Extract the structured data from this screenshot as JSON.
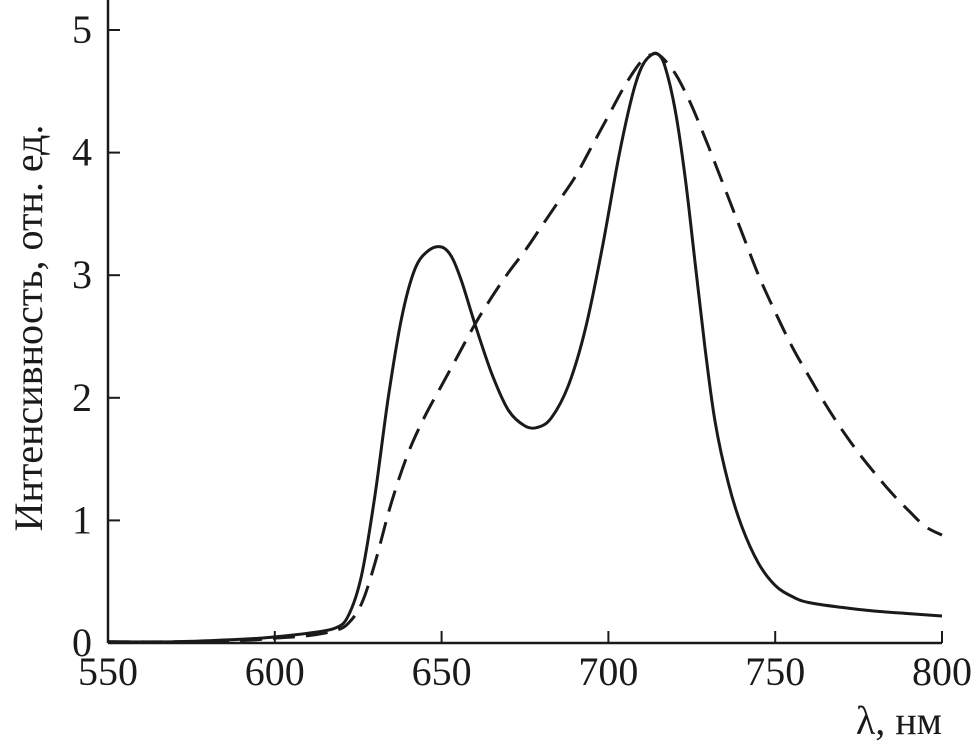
{
  "chart_data": {
    "type": "line",
    "title": "",
    "xlabel": "λ, нм",
    "ylabel": "Интенсивность, отн. ед.",
    "xlim": [
      550,
      800
    ],
    "ylim": [
      0,
      5
    ],
    "x_ticks": [
      550,
      600,
      650,
      700,
      750,
      800
    ],
    "y_ticks": [
      0,
      1,
      2,
      3,
      4,
      5
    ],
    "grid": false,
    "legend": "none",
    "series": [
      {
        "style": "solid",
        "color": "#1a1a1a",
        "x": [
          550,
          570,
          590,
          600,
          610,
          618,
          622,
          626,
          630,
          634,
          638,
          642,
          646,
          650,
          653,
          656,
          660,
          665,
          670,
          675,
          679,
          683,
          688,
          693,
          698,
          703,
          707,
          710,
          713,
          715,
          717,
          720,
          723,
          726,
          729,
          732,
          736,
          740,
          745,
          750,
          755,
          760,
          770,
          780,
          790,
          800
        ],
        "y": [
          0.01,
          0.01,
          0.03,
          0.05,
          0.08,
          0.12,
          0.22,
          0.55,
          1.2,
          2.0,
          2.65,
          3.05,
          3.2,
          3.23,
          3.15,
          2.95,
          2.6,
          2.2,
          1.9,
          1.77,
          1.76,
          1.84,
          2.1,
          2.55,
          3.2,
          3.95,
          4.45,
          4.7,
          4.8,
          4.8,
          4.7,
          4.35,
          3.8,
          3.1,
          2.4,
          1.8,
          1.3,
          0.95,
          0.65,
          0.47,
          0.38,
          0.33,
          0.29,
          0.26,
          0.24,
          0.22
        ]
      },
      {
        "style": "dashed",
        "color": "#1a1a1a",
        "x": [
          550,
          570,
          590,
          600,
          610,
          618,
          622,
          626,
          630,
          635,
          640,
          645,
          650,
          655,
          660,
          665,
          670,
          675,
          680,
          685,
          690,
          695,
          700,
          705,
          710,
          713,
          715,
          718,
          721,
          725,
          730,
          735,
          740,
          745,
          750,
          755,
          760,
          765,
          770,
          775,
          780,
          785,
          790,
          795,
          800
        ],
        "y": [
          0.01,
          0.01,
          0.02,
          0.04,
          0.06,
          0.1,
          0.16,
          0.32,
          0.65,
          1.15,
          1.55,
          1.85,
          2.1,
          2.35,
          2.6,
          2.82,
          3.02,
          3.2,
          3.4,
          3.6,
          3.8,
          4.05,
          4.3,
          4.55,
          4.75,
          4.8,
          4.8,
          4.72,
          4.6,
          4.38,
          4.05,
          3.7,
          3.35,
          3.0,
          2.7,
          2.42,
          2.18,
          1.95,
          1.74,
          1.55,
          1.38,
          1.22,
          1.08,
          0.95,
          0.88
        ]
      }
    ]
  }
}
